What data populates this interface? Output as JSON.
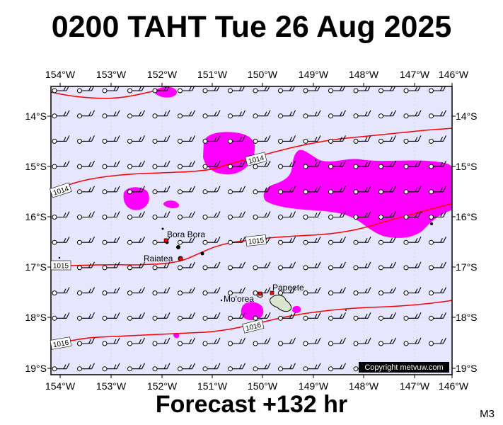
{
  "title": "0200 TAHT Tue 26 Aug 2025",
  "forecast_label": "Forecast +132 hr",
  "model_label": "M3",
  "copyright": "Copyright metvuw.com",
  "colors": {
    "ocean": "#e6e6ff",
    "rain": "#ff00ff",
    "isobar": "#ff0000",
    "land": "#d8e6cf",
    "frame": "#000000"
  },
  "longitude_labels": [
    "154°W",
    "153°W",
    "152°W",
    "151°W",
    "150°W",
    "149°W",
    "148°W",
    "147°W",
    "146°W"
  ],
  "latitude_labels": [
    "14°S",
    "15°S",
    "16°S",
    "17°S",
    "18°S",
    "19°S"
  ],
  "places": [
    {
      "name": "Bora Bora"
    },
    {
      "name": "Raiatea"
    },
    {
      "name": "Papeete"
    },
    {
      "name": "Mo'orea"
    }
  ],
  "isobars": [
    {
      "label": "1014"
    },
    {
      "label": "1014"
    },
    {
      "label": "1015"
    },
    {
      "label": "1015"
    },
    {
      "label": "1016"
    },
    {
      "label": "1016"
    }
  ],
  "wind_barbs": {
    "rows": 12,
    "columns": 16,
    "description": "light easterly winds"
  }
}
